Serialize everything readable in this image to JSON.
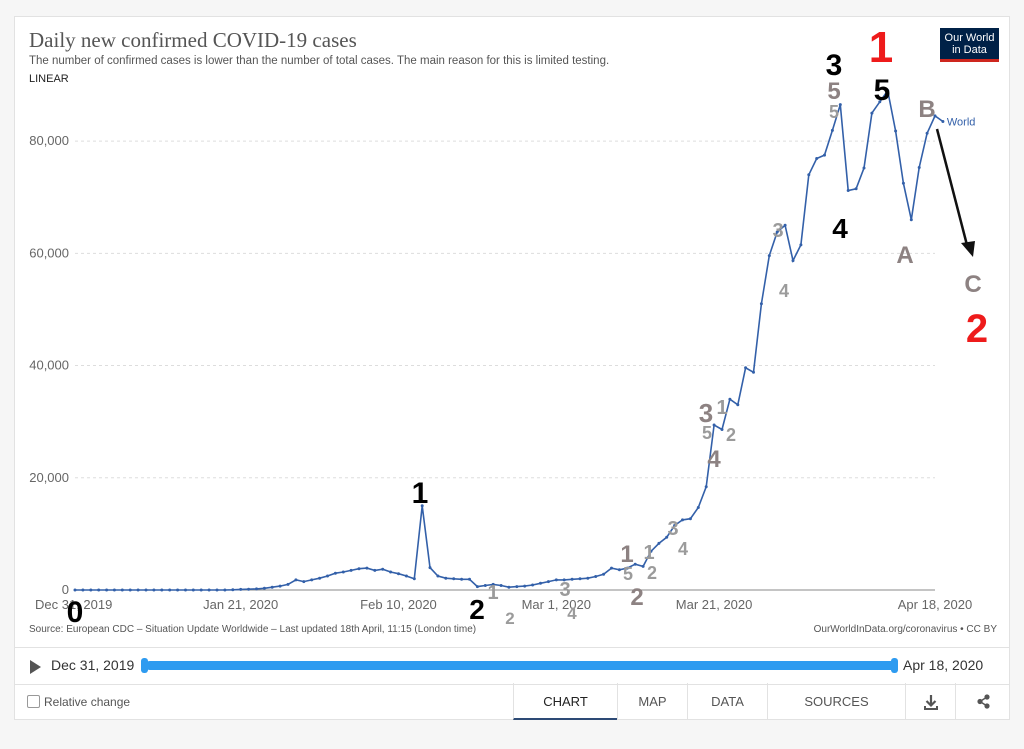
{
  "header": {
    "title": "Daily new confirmed COVID-19 cases",
    "subtitle": "The number of confirmed cases is lower than the number of total cases. The main reason for this is limited testing.",
    "scale_toggle": "LINEAR",
    "logo_line1": "Our World",
    "logo_line2": "in Data"
  },
  "chart_data": {
    "type": "line",
    "title": "Daily new confirmed COVID-19 cases",
    "subtitle": "The number of confirmed cases is lower than the number of total cases. The main reason for this is limited testing.",
    "x_start": "2019-12-31",
    "x_end": "2020-04-18",
    "x_tick_labels": [
      "Dec 31, 2019",
      "Jan 21, 2020",
      "Feb 10, 2020",
      "Mar 1, 2020",
      "Mar 21, 2020",
      "Apr 18, 2020"
    ],
    "y_tick_values": [
      0,
      20000,
      40000,
      60000,
      80000
    ],
    "y_tick_labels": [
      "0",
      "20,000",
      "40,000",
      "60,000",
      "80,000"
    ],
    "ylim": [
      0,
      90000
    ],
    "grid": "horizontal dashed",
    "series": [
      {
        "name": "World",
        "color": "#3360a9",
        "values": [
          0,
          0,
          0,
          0,
          0,
          0,
          0,
          0,
          0,
          0,
          0,
          0,
          0,
          0,
          0,
          0,
          0,
          0,
          0,
          0,
          30,
          100,
          150,
          200,
          300,
          500,
          700,
          1000,
          1800,
          1500,
          1800,
          2100,
          2500,
          3000,
          3200,
          3500,
          3800,
          3900,
          3500,
          3700,
          3200,
          2900,
          2500,
          2000,
          15000,
          4000,
          2500,
          2100,
          2000,
          1900,
          1900,
          600,
          800,
          1000,
          800,
          500,
          600,
          700,
          900,
          1200,
          1500,
          1800,
          1800,
          1900,
          2000,
          2100,
          2400,
          2800,
          3900,
          3600,
          3900,
          4600,
          4200,
          6900,
          8300,
          9400,
          11500,
          12500,
          12700,
          14700,
          18400,
          29400,
          28600,
          34000,
          33000,
          39600,
          38800,
          51000,
          59600,
          63800,
          65000,
          58700,
          61500,
          74000,
          76900,
          77500,
          81900,
          86500,
          71200,
          71500,
          75200,
          85000,
          87000,
          89000,
          81800,
          72500,
          66000,
          75300,
          81400,
          84500,
          83500
        ]
      }
    ],
    "annotations": [
      {
        "text": "0",
        "color": "#000000"
      },
      {
        "text": "1",
        "color": "#000000"
      },
      {
        "text": "2",
        "color": "#000000"
      },
      {
        "text": "1",
        "color": "#9b9b9b"
      },
      {
        "text": "2",
        "color": "#9b9b9b"
      },
      {
        "text": "3",
        "color": "#9b9b9b"
      },
      {
        "text": "4",
        "color": "#9b9b9b"
      },
      {
        "text": "1",
        "color": "#8d8282"
      },
      {
        "text": "5",
        "color": "#9b9b9b"
      },
      {
        "text": "2",
        "color": "#8d8282"
      },
      {
        "text": "1",
        "color": "#9b9b9b"
      },
      {
        "text": "2",
        "color": "#9b9b9b"
      },
      {
        "text": "3",
        "color": "#9b9b9b"
      },
      {
        "text": "4",
        "color": "#9b9b9b"
      },
      {
        "text": "3",
        "color": "#8d8282"
      },
      {
        "text": "5",
        "color": "#9b9b9b"
      },
      {
        "text": "4",
        "color": "#8d8282"
      },
      {
        "text": "1",
        "color": "#9b9b9b"
      },
      {
        "text": "2",
        "color": "#9b9b9b"
      },
      {
        "text": "3",
        "color": "#9b9b9b"
      },
      {
        "text": "4",
        "color": "#9b9b9b"
      },
      {
        "text": "3",
        "color": "#000000"
      },
      {
        "text": "5",
        "color": "#8d8282"
      },
      {
        "text": "5",
        "color": "#9b9b9b"
      },
      {
        "text": "4",
        "color": "#000000"
      },
      {
        "text": "1",
        "color": "#ee1b1b"
      },
      {
        "text": "5",
        "color": "#000000"
      },
      {
        "text": "A",
        "color": "#8d8282"
      },
      {
        "text": "B",
        "color": "#8d8282"
      },
      {
        "text": "C",
        "color": "#8d8282"
      },
      {
        "text": "2",
        "color": "#ee1b1b"
      }
    ]
  },
  "source": {
    "left": "Source: European CDC – Situation Update Worldwide – Last updated 18th April, 11:15 (London time)",
    "right": "OurWorldInData.org/coronavirus • CC BY"
  },
  "timeline": {
    "start_label": "Dec 31, 2019",
    "end_label": "Apr 18, 2020",
    "range_start": 0,
    "range_end": 1
  },
  "footer": {
    "relative_change": "Relative change",
    "tabs": [
      "CHART",
      "MAP",
      "DATA",
      "SOURCES"
    ],
    "active_tab": "CHART"
  },
  "icons": [
    "play-icon",
    "download-icon",
    "share-icon"
  ]
}
